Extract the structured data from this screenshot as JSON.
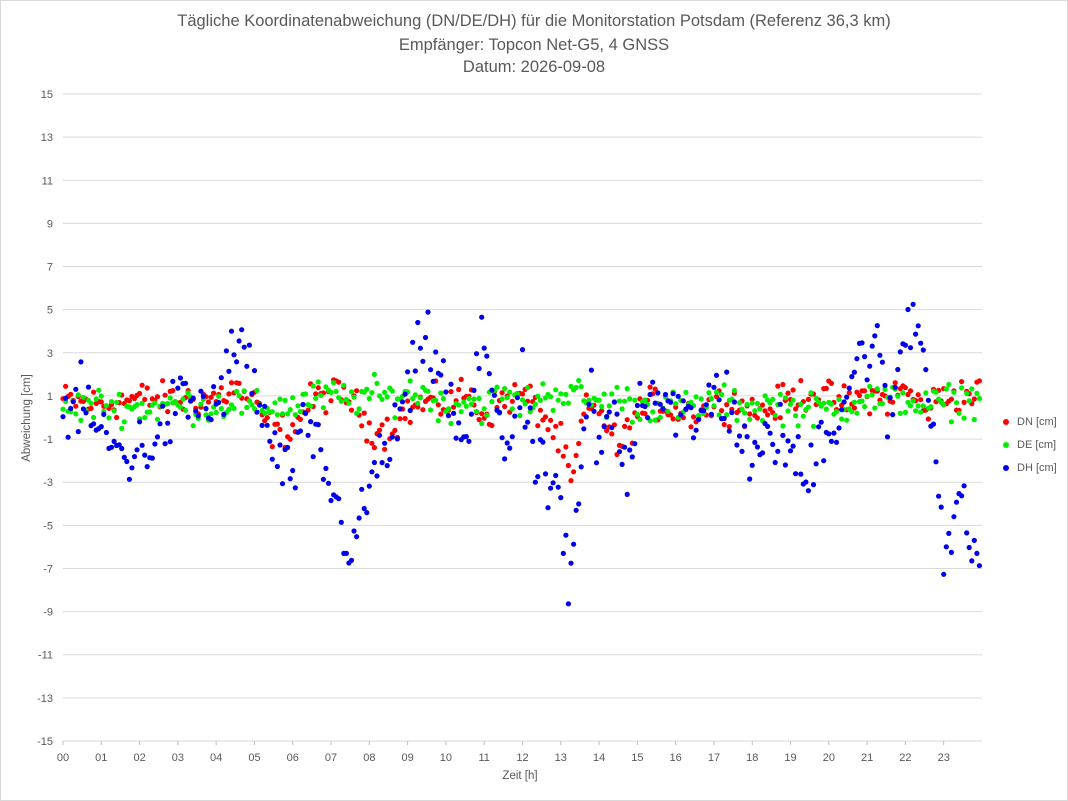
{
  "chart_data": {
    "type": "scatter",
    "title_lines": [
      "Tägliche Koordinatenabweichung (DN/DE/DH) für die Monitorstation Potsdam (Referenz 36,3 km)",
      "Empfänger: Topcon Net-G5, 4 GNSS",
      "Datum: 2026-09-08"
    ],
    "xlabel": "Zeit [h]",
    "ylabel": "Abweichung [cm]",
    "xlim": [
      0,
      24
    ],
    "ylim": [
      -15,
      15
    ],
    "x_ticks": [
      "00",
      "01",
      "02",
      "03",
      "04",
      "05",
      "06",
      "07",
      "08",
      "09",
      "10",
      "11",
      "12",
      "13",
      "14",
      "15",
      "16",
      "17",
      "18",
      "19",
      "20",
      "21",
      "22",
      "23"
    ],
    "y_ticks": [
      15,
      13,
      11,
      9,
      7,
      5,
      3,
      1,
      -1,
      -3,
      -5,
      -7,
      -9,
      -11,
      -13,
      -15
    ],
    "grid": "horizontal",
    "legend_position": "right",
    "sampling_minutes": 4,
    "series": [
      {
        "name": "DN [cm]",
        "color": "#ff0000",
        "anchors": [
          [
            0,
            0.8
          ],
          [
            1,
            0.6
          ],
          [
            2,
            0.9
          ],
          [
            3,
            0.8
          ],
          [
            4,
            0.9
          ],
          [
            4.5,
            1.4
          ],
          [
            5,
            0.6
          ],
          [
            5.5,
            -0.7
          ],
          [
            6,
            -0.5
          ],
          [
            6.5,
            0.8
          ],
          [
            7,
            1.1
          ],
          [
            7.5,
            0.9
          ],
          [
            8,
            -0.5
          ],
          [
            8.5,
            -0.6
          ],
          [
            9,
            0.3
          ],
          [
            9.5,
            0.7
          ],
          [
            10,
            0.6
          ],
          [
            10.5,
            1.2
          ],
          [
            11,
            0.1
          ],
          [
            11.5,
            0.8
          ],
          [
            12,
            1.1
          ],
          [
            12.5,
            0.2
          ],
          [
            13,
            -1.2
          ],
          [
            13.3,
            -3.2
          ],
          [
            13.6,
            0.2
          ],
          [
            14,
            0.5
          ],
          [
            14.5,
            -1.5
          ],
          [
            15,
            0.2
          ],
          [
            15.5,
            0.7
          ],
          [
            16,
            0.3
          ],
          [
            16.5,
            0.2
          ],
          [
            17,
            0.6
          ],
          [
            17.5,
            0.7
          ],
          [
            18,
            0.3
          ],
          [
            18.5,
            0.4
          ],
          [
            19,
            0.9
          ],
          [
            19.5,
            1.2
          ],
          [
            20,
            0.9
          ],
          [
            20.5,
            0.6
          ],
          [
            21,
            1.1
          ],
          [
            21.5,
            0.8
          ],
          [
            22,
            1.3
          ],
          [
            22.5,
            0.4
          ],
          [
            23,
            1.0
          ],
          [
            23.9,
            1.1
          ]
        ],
        "noise": 0.55
      },
      {
        "name": "DE [cm]",
        "color": "#00ee00",
        "anchors": [
          [
            0,
            0.4
          ],
          [
            1,
            0.6
          ],
          [
            2,
            0.4
          ],
          [
            3,
            0.6
          ],
          [
            4,
            0.5
          ],
          [
            4.5,
            0.8
          ],
          [
            5,
            0.3
          ],
          [
            5.5,
            0.6
          ],
          [
            6,
            0.5
          ],
          [
            6.5,
            0.9
          ],
          [
            7,
            1.0
          ],
          [
            7.5,
            0.8
          ],
          [
            8,
            1.1
          ],
          [
            8.5,
            0.9
          ],
          [
            9,
            1.2
          ],
          [
            9.5,
            1.1
          ],
          [
            10,
            0.4
          ],
          [
            10.5,
            0.8
          ],
          [
            11,
            0.5
          ],
          [
            11.5,
            0.9
          ],
          [
            12,
            0.6
          ],
          [
            12.5,
            1.0
          ],
          [
            13,
            1.2
          ],
          [
            13.5,
            1.0
          ],
          [
            14,
            0.6
          ],
          [
            14.5,
            0.9
          ],
          [
            15,
            0.5
          ],
          [
            15.5,
            0.6
          ],
          [
            16,
            0.4
          ],
          [
            16.5,
            0.5
          ],
          [
            17,
            0.7
          ],
          [
            17.5,
            0.6
          ],
          [
            18,
            0.5
          ],
          [
            18.5,
            0.6
          ],
          [
            19,
            0.5
          ],
          [
            19.5,
            0.3
          ],
          [
            20,
            0.4
          ],
          [
            20.5,
            0.6
          ],
          [
            21,
            1.0
          ],
          [
            21.5,
            0.7
          ],
          [
            22,
            0.9
          ],
          [
            22.5,
            0.5
          ],
          [
            23,
            0.7
          ],
          [
            23.9,
            0.9
          ]
        ],
        "noise": 0.55
      },
      {
        "name": "DH [cm]",
        "color": "#0000ee",
        "anchors": [
          [
            0,
            0.2
          ],
          [
            0.5,
            0.6
          ],
          [
            1,
            -0.8
          ],
          [
            1.6,
            -1.8
          ],
          [
            2,
            -1.5
          ],
          [
            2.5,
            -1.0
          ],
          [
            3,
            0.7
          ],
          [
            3.5,
            0.6
          ],
          [
            4,
            0.5
          ],
          [
            4.5,
            3.2
          ],
          [
            4.9,
            2.5
          ],
          [
            5.2,
            -0.2
          ],
          [
            5.5,
            -1.5
          ],
          [
            5.9,
            -3.0
          ],
          [
            6.3,
            -0.8
          ],
          [
            6.7,
            -1.5
          ],
          [
            7.1,
            -4.0
          ],
          [
            7.5,
            -6.0
          ],
          [
            7.8,
            -5.0
          ],
          [
            8.1,
            -2.5
          ],
          [
            8.5,
            -1.5
          ],
          [
            9,
            1.0
          ],
          [
            9.4,
            3.5
          ],
          [
            9.8,
            2.5
          ],
          [
            10.2,
            0.0
          ],
          [
            10.5,
            -2.0
          ],
          [
            10.8,
            2.0
          ],
          [
            11,
            3.5
          ],
          [
            11.3,
            1.0
          ],
          [
            11.6,
            -1.5
          ],
          [
            12,
            1.2
          ],
          [
            12.3,
            -2.0
          ],
          [
            12.6,
            -3.0
          ],
          [
            13,
            -3.5
          ],
          [
            13.2,
            -9.0
          ],
          [
            13.5,
            -3.0
          ],
          [
            13.8,
            1.5
          ],
          [
            14,
            -2.0
          ],
          [
            14.4,
            0.5
          ],
          [
            14.7,
            -2.8
          ],
          [
            15,
            0.8
          ],
          [
            15.5,
            1.5
          ],
          [
            16,
            0.5
          ],
          [
            16.5,
            -0.8
          ],
          [
            17,
            1.5
          ],
          [
            17.5,
            0.4
          ],
          [
            17.8,
            -1.5
          ],
          [
            18.1,
            -2.5
          ],
          [
            18.5,
            -0.5
          ],
          [
            19,
            -1.5
          ],
          [
            19.4,
            -3.2
          ],
          [
            19.8,
            -0.5
          ],
          [
            20.2,
            -0.3
          ],
          [
            20.6,
            2.0
          ],
          [
            21,
            3.2
          ],
          [
            21.3,
            3.0
          ],
          [
            21.6,
            -0.5
          ],
          [
            21.9,
            3.5
          ],
          [
            22.2,
            4.8
          ],
          [
            22.5,
            3.0
          ],
          [
            22.8,
            -1.0
          ],
          [
            23,
            -6.5
          ],
          [
            23.4,
            -4.0
          ],
          [
            23.8,
            -6.2
          ]
        ],
        "noise": 1.1
      }
    ]
  }
}
